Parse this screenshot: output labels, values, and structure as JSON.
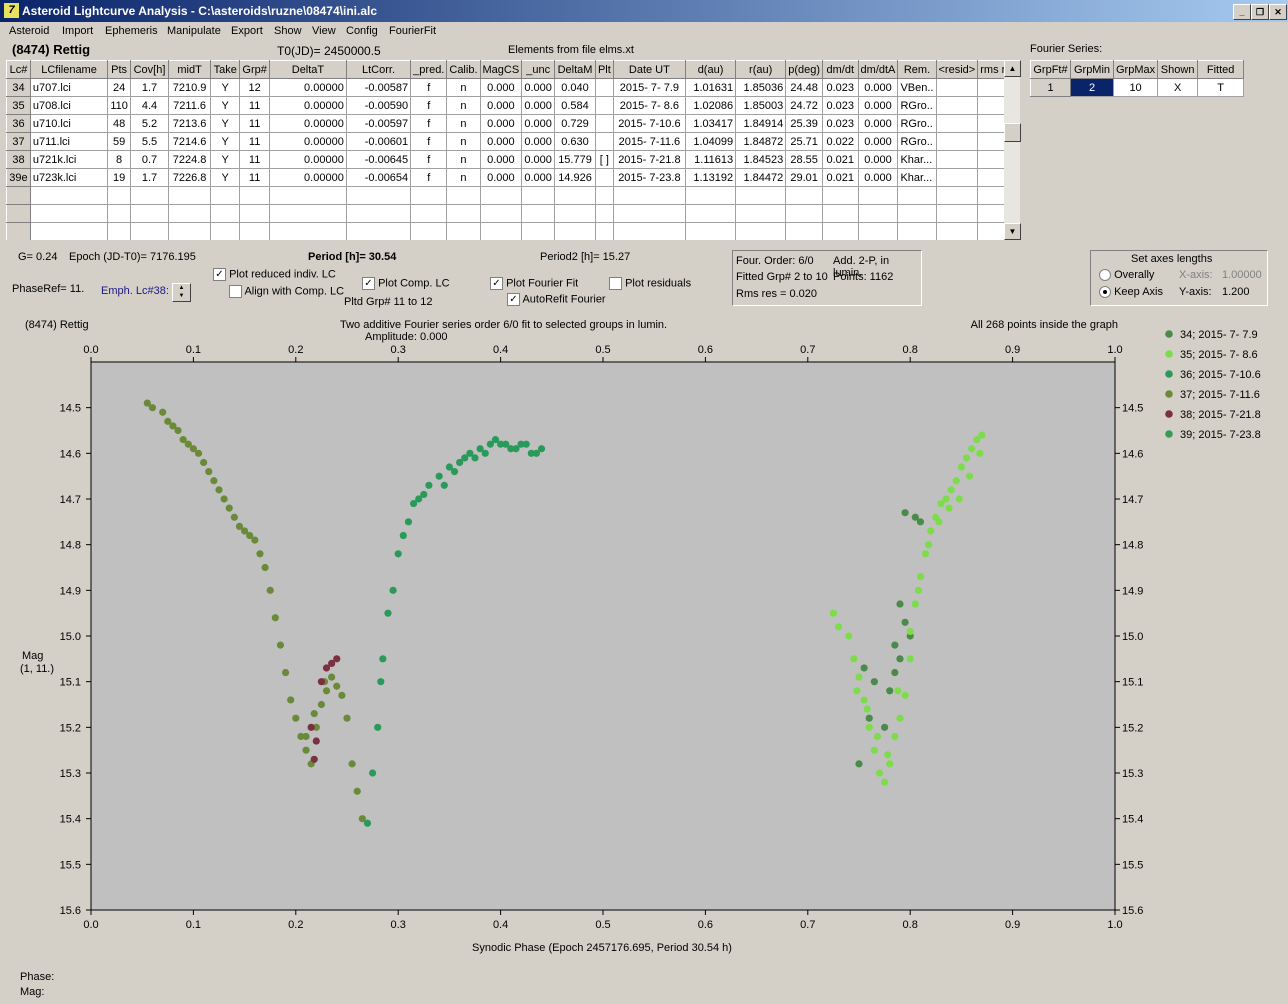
{
  "window": {
    "title": "Asteroid Lightcurve Analysis - C:\\asteroids\\ruzne\\08474\\ini.alc",
    "icon": "app-icon"
  },
  "menu": [
    "Asteroid",
    "Import",
    "Ephemeris",
    "Manipulate",
    "Export",
    "Show",
    "View",
    "Config",
    "FourierFit"
  ],
  "header": {
    "asteroid": "(8474) Rettig",
    "t0": "T0(JD)= 2450000.5",
    "elements": "Elements from file elms.xt"
  },
  "table": {
    "columns": [
      "Lc#",
      "LCfilename",
      "Pts",
      "Cov[h]",
      "midT",
      "Take",
      "Grp#",
      "DeltaT",
      "LtCorr.",
      "_pred.",
      "Calib.",
      "MagCS",
      "_unc",
      "DeltaM",
      "Plt",
      "Date UT",
      "d(au)",
      "r(au)",
      "p(deg)",
      "dm/dt",
      "dm/dtA",
      "Rem.",
      "<resid>",
      "rms res"
    ],
    "rows": [
      [
        "34",
        "u707.lci",
        "24",
        "1.7",
        "7210.9",
        "Y",
        "12",
        "0.00000",
        "-0.00587",
        "f",
        "n",
        "0.000",
        "0.000",
        "0.040",
        "",
        "2015- 7- 7.9",
        "1.01631",
        "1.85036",
        "24.48",
        "0.023",
        "0.000",
        "VBen..",
        "",
        ""
      ],
      [
        "35",
        "u708.lci",
        "110",
        "4.4",
        "7211.6",
        "Y",
        "11",
        "0.00000",
        "-0.00590",
        "f",
        "n",
        "0.000",
        "0.000",
        "0.584",
        "",
        "2015- 7- 8.6",
        "1.02086",
        "1.85003",
        "24.72",
        "0.023",
        "0.000",
        "RGro..",
        "",
        ""
      ],
      [
        "36",
        "u710.lci",
        "48",
        "5.2",
        "7213.6",
        "Y",
        "11",
        "0.00000",
        "-0.00597",
        "f",
        "n",
        "0.000",
        "0.000",
        "0.729",
        "",
        "2015- 7-10.6",
        "1.03417",
        "1.84914",
        "25.39",
        "0.023",
        "0.000",
        "RGro..",
        "",
        ""
      ],
      [
        "37",
        "u711.lci",
        "59",
        "5.5",
        "7214.6",
        "Y",
        "11",
        "0.00000",
        "-0.00601",
        "f",
        "n",
        "0.000",
        "0.000",
        "0.630",
        "",
        "2015- 7-11.6",
        "1.04099",
        "1.84872",
        "25.71",
        "0.022",
        "0.000",
        "RGro..",
        "",
        ""
      ],
      [
        "38",
        "u721k.lci",
        "8",
        "0.7",
        "7224.8",
        "Y",
        "11",
        "0.00000",
        "-0.00645",
        "f",
        "n",
        "0.000",
        "0.000",
        "15.779",
        "[ ]",
        "2015- 7-21.8",
        "1.11613",
        "1.84523",
        "28.55",
        "0.021",
        "0.000",
        "Khar...",
        "",
        ""
      ],
      [
        "39e",
        "u723k.lci",
        "19",
        "1.7",
        "7226.8",
        "Y",
        "11",
        "0.00000",
        "-0.00654",
        "f",
        "n",
        "0.000",
        "0.000",
        "14.926",
        "",
        "2015- 7-23.8",
        "1.13192",
        "1.84472",
        "29.01",
        "0.021",
        "0.000",
        "Khar...",
        "",
        ""
      ]
    ]
  },
  "fourier_series": {
    "title": "Fourier Series:",
    "columns": [
      "GrpFt#",
      "GrpMin",
      "GrpMax",
      "Shown",
      "Fitted"
    ],
    "row": [
      "1",
      "2",
      "10",
      "X",
      "T"
    ]
  },
  "info": {
    "g": "G= 0.24",
    "epoch": "Epoch (JD-T0)= 7176.195",
    "period": "Period [h]= 30.54",
    "period2": "Period2 [h]= 15.27",
    "phaseref": "PhaseRef= 11.",
    "emph": "Emph. Lc#38:",
    "plot_reduced": "Plot reduced indiv. LC",
    "align": "Align with Comp. LC",
    "plot_comp": "Plot Comp. LC",
    "pltd_grp": "Pltd Grp#  11 to  12",
    "plot_fourier": "Plot Fourier Fit",
    "autorefit": "AutoRefit Fourier",
    "plot_residuals": "Plot residuals",
    "four_order": "Four. Order:  6/0",
    "add2p": "Add. 2-P, in lumin.",
    "fitted_grp": "Fitted Grp# 2 to 10",
    "points": "Points: 1162",
    "rms": "Rms res     = 0.020"
  },
  "axes_lengths": {
    "title": "Set axes lengths",
    "overally": "Overally",
    "keep_axis": "Keep Axis",
    "x_label": "X-axis:",
    "x_value": "1.00000",
    "y_label": "Y-axis:",
    "y_value": "1.200"
  },
  "plot": {
    "top_left": "(8474) Rettig",
    "title": "Two additive Fourier series order 6/0 fit to selected groups in lumin.",
    "amplitude": "Amplitude: 0.000",
    "top_right": "All 268 points inside the graph",
    "ylabel_1": "Mag",
    "ylabel_2": "(1, 11.)",
    "xlabel": "Synodic Phase (Epoch 2457176.695, Period 30.54 h)"
  },
  "status": {
    "phase": "Phase:",
    "mag": "Mag:"
  },
  "chart_data": {
    "type": "scatter",
    "xlim": [
      0,
      1.0
    ],
    "ylim": [
      15.6,
      14.4
    ],
    "x_ticks": [
      "0.0",
      "0.1",
      "0.2",
      "0.3",
      "0.4",
      "0.5",
      "0.6",
      "0.7",
      "0.8",
      "0.9",
      "1.0"
    ],
    "y_ticks": [
      "14.5",
      "14.6",
      "14.7",
      "14.8",
      "14.9",
      "15.0",
      "15.1",
      "15.2",
      "15.3",
      "15.4",
      "15.5",
      "15.6"
    ],
    "legend_position": "right",
    "series": [
      {
        "name": "34; 2015- 7- 7.9",
        "color": "#4a8a4a",
        "points": [
          [
            0.795,
            14.73
          ],
          [
            0.805,
            14.74
          ],
          [
            0.81,
            14.75
          ],
          [
            0.79,
            14.93
          ],
          [
            0.795,
            14.97
          ],
          [
            0.785,
            15.02
          ],
          [
            0.79,
            15.05
          ],
          [
            0.755,
            15.07
          ],
          [
            0.765,
            15.1
          ],
          [
            0.78,
            15.12
          ],
          [
            0.785,
            15.08
          ],
          [
            0.76,
            15.18
          ],
          [
            0.775,
            15.2
          ],
          [
            0.75,
            15.28
          ],
          [
            0.8,
            15.0
          ]
        ]
      },
      {
        "name": "35; 2015- 7- 8.6",
        "color": "#7ddc4a",
        "points": [
          [
            0.725,
            14.95
          ],
          [
            0.73,
            14.98
          ],
          [
            0.74,
            15.0
          ],
          [
            0.745,
            15.05
          ],
          [
            0.75,
            15.09
          ],
          [
            0.755,
            15.14
          ],
          [
            0.76,
            15.2
          ],
          [
            0.765,
            15.25
          ],
          [
            0.77,
            15.3
          ],
          [
            0.775,
            15.32
          ],
          [
            0.78,
            15.28
          ],
          [
            0.785,
            15.22
          ],
          [
            0.79,
            15.18
          ],
          [
            0.795,
            15.13
          ],
          [
            0.8,
            15.05
          ],
          [
            0.8,
            14.99
          ],
          [
            0.805,
            14.93
          ],
          [
            0.81,
            14.87
          ],
          [
            0.815,
            14.82
          ],
          [
            0.82,
            14.77
          ],
          [
            0.825,
            14.74
          ],
          [
            0.83,
            14.71
          ],
          [
            0.835,
            14.7
          ],
          [
            0.84,
            14.68
          ],
          [
            0.845,
            14.66
          ],
          [
            0.85,
            14.63
          ],
          [
            0.855,
            14.61
          ],
          [
            0.86,
            14.59
          ],
          [
            0.865,
            14.57
          ],
          [
            0.87,
            14.56
          ],
          [
            0.748,
            15.12
          ],
          [
            0.758,
            15.16
          ],
          [
            0.768,
            15.22
          ],
          [
            0.778,
            15.26
          ],
          [
            0.788,
            15.12
          ],
          [
            0.808,
            14.9
          ],
          [
            0.818,
            14.8
          ],
          [
            0.828,
            14.75
          ],
          [
            0.838,
            14.72
          ],
          [
            0.848,
            14.7
          ],
          [
            0.858,
            14.65
          ],
          [
            0.868,
            14.6
          ]
        ]
      },
      {
        "name": "36; 2015- 7-10.6",
        "color": "#2a9a5a",
        "points": [
          [
            0.27,
            15.41
          ],
          [
            0.275,
            15.3
          ],
          [
            0.28,
            15.2
          ],
          [
            0.283,
            15.1
          ],
          [
            0.285,
            15.05
          ],
          [
            0.29,
            14.95
          ],
          [
            0.295,
            14.9
          ],
          [
            0.3,
            14.82
          ],
          [
            0.305,
            14.78
          ],
          [
            0.31,
            14.75
          ],
          [
            0.315,
            14.71
          ],
          [
            0.32,
            14.7
          ],
          [
            0.325,
            14.69
          ],
          [
            0.33,
            14.67
          ],
          [
            0.34,
            14.65
          ],
          [
            0.35,
            14.63
          ],
          [
            0.36,
            14.62
          ],
          [
            0.37,
            14.6
          ],
          [
            0.38,
            14.59
          ],
          [
            0.39,
            14.58
          ],
          [
            0.4,
            14.58
          ],
          [
            0.41,
            14.59
          ],
          [
            0.42,
            14.58
          ],
          [
            0.43,
            14.6
          ],
          [
            0.44,
            14.59
          ],
          [
            0.345,
            14.67
          ],
          [
            0.355,
            14.64
          ],
          [
            0.365,
            14.61
          ],
          [
            0.375,
            14.61
          ],
          [
            0.385,
            14.6
          ],
          [
            0.395,
            14.57
          ],
          [
            0.405,
            14.58
          ],
          [
            0.415,
            14.59
          ],
          [
            0.425,
            14.58
          ],
          [
            0.435,
            14.6
          ]
        ]
      },
      {
        "name": "37; 2015- 7-11.6",
        "color": "#6a8a3a",
        "points": [
          [
            0.055,
            14.49
          ],
          [
            0.06,
            14.5
          ],
          [
            0.07,
            14.51
          ],
          [
            0.075,
            14.53
          ],
          [
            0.08,
            14.54
          ],
          [
            0.085,
            14.55
          ],
          [
            0.09,
            14.57
          ],
          [
            0.095,
            14.58
          ],
          [
            0.1,
            14.59
          ],
          [
            0.105,
            14.6
          ],
          [
            0.11,
            14.62
          ],
          [
            0.115,
            14.64
          ],
          [
            0.12,
            14.66
          ],
          [
            0.125,
            14.68
          ],
          [
            0.13,
            14.7
          ],
          [
            0.135,
            14.72
          ],
          [
            0.14,
            14.74
          ],
          [
            0.145,
            14.76
          ],
          [
            0.15,
            14.77
          ],
          [
            0.155,
            14.78
          ],
          [
            0.16,
            14.79
          ],
          [
            0.165,
            14.82
          ],
          [
            0.17,
            14.85
          ],
          [
            0.175,
            14.9
          ],
          [
            0.18,
            14.96
          ],
          [
            0.185,
            15.02
          ],
          [
            0.19,
            15.08
          ],
          [
            0.195,
            15.14
          ],
          [
            0.2,
            15.18
          ],
          [
            0.205,
            15.22
          ],
          [
            0.21,
            15.25
          ],
          [
            0.215,
            15.28
          ],
          [
            0.22,
            15.2
          ],
          [
            0.225,
            15.15
          ],
          [
            0.23,
            15.12
          ],
          [
            0.235,
            15.09
          ],
          [
            0.24,
            15.11
          ],
          [
            0.245,
            15.13
          ],
          [
            0.25,
            15.18
          ],
          [
            0.255,
            15.28
          ],
          [
            0.26,
            15.34
          ],
          [
            0.265,
            15.4
          ],
          [
            0.21,
            15.22
          ],
          [
            0.218,
            15.17
          ],
          [
            0.228,
            15.1
          ]
        ]
      },
      {
        "name": "38; 2015- 7-21.8",
        "color": "#7a3040",
        "points": [
          [
            0.215,
            15.2
          ],
          [
            0.22,
            15.23
          ],
          [
            0.225,
            15.1
          ],
          [
            0.23,
            15.07
          ],
          [
            0.235,
            15.06
          ],
          [
            0.24,
            15.05
          ],
          [
            0.218,
            15.27
          ]
        ]
      },
      {
        "name": "39; 2015- 7-23.8",
        "color": "#3a9a5a",
        "points": []
      }
    ]
  }
}
